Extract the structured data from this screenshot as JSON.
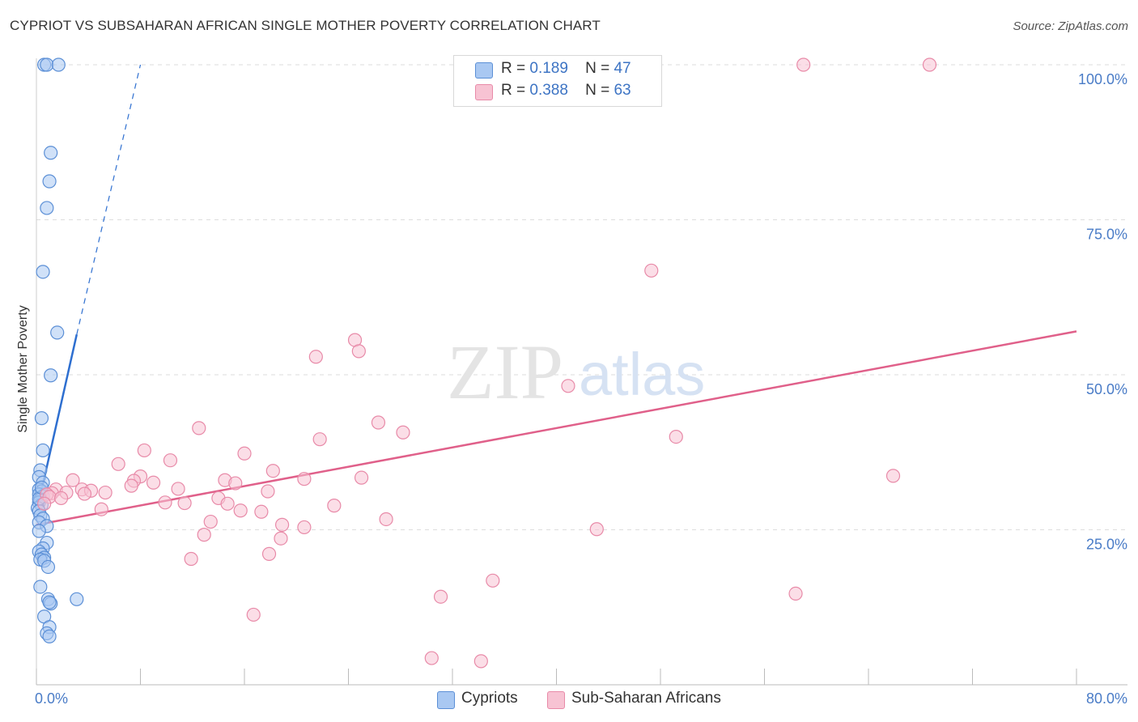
{
  "header": {
    "title": "CYPRIOT VS SUBSAHARAN AFRICAN SINGLE MOTHER POVERTY CORRELATION CHART",
    "source": "Source: ZipAtlas.com"
  },
  "watermark": {
    "zip": "ZIP",
    "atlas": "atlas"
  },
  "legend": {
    "rows": [
      {
        "r_label": "R =",
        "r_value": "0.189",
        "n_label": "N =",
        "n_value": "47"
      },
      {
        "r_label": "R =",
        "r_value": "0.388",
        "n_label": "N =",
        "n_value": "63"
      }
    ]
  },
  "bottom_legend": {
    "series1": "Cypriots",
    "series2": "Sub-Saharan Africans"
  },
  "colors": {
    "blue_fill": "#a9c8f2",
    "blue_stroke": "#5b8fd6",
    "blue_line": "#2e6fd0",
    "pink_fill": "#f7c3d3",
    "pink_stroke": "#e88aa8",
    "pink_line": "#e0608a",
    "tick_color": "#4a7cc7",
    "grid": "#dddddd"
  },
  "chart_data": {
    "type": "scatter",
    "title": "CYPRIOT VS SUBSAHARAN AFRICAN SINGLE MOTHER POVERTY CORRELATION CHART",
    "xlabel": "",
    "ylabel": "Single Mother Poverty",
    "xlim": [
      0,
      80
    ],
    "ylim": [
      0,
      100
    ],
    "x_tick_labels": [
      "0.0%",
      "80.0%"
    ],
    "y_tick_labels": [
      "100.0%",
      "75.0%",
      "50.0%",
      "25.0%"
    ],
    "y_ticks": [
      100,
      75,
      50,
      25
    ],
    "grid": true,
    "legend_position": "top-center",
    "series": [
      {
        "name": "Cypriots",
        "r": 0.189,
        "n": 47,
        "points": [
          [
            0.6,
            100
          ],
          [
            0.8,
            100
          ],
          [
            1.7,
            100
          ],
          [
            1.1,
            85.8
          ],
          [
            1.0,
            81.2
          ],
          [
            0.8,
            76.9
          ],
          [
            0.5,
            66.6
          ],
          [
            1.6,
            56.8
          ],
          [
            1.1,
            49.9
          ],
          [
            0.4,
            43
          ],
          [
            0.5,
            37.8
          ],
          [
            0.3,
            34.6
          ],
          [
            0.2,
            33.5
          ],
          [
            0.5,
            32.6
          ],
          [
            0.2,
            31.5
          ],
          [
            0.4,
            31.2
          ],
          [
            0.2,
            30.7
          ],
          [
            0.5,
            30.4
          ],
          [
            0.3,
            29.9
          ],
          [
            0.2,
            29.4
          ],
          [
            0.4,
            29
          ],
          [
            0.1,
            28.5
          ],
          [
            0.2,
            28
          ],
          [
            0.3,
            27.3
          ],
          [
            0.5,
            26.8
          ],
          [
            0.2,
            26.2
          ],
          [
            0.8,
            25.6
          ],
          [
            0.2,
            24.8
          ],
          [
            0.8,
            22.9
          ],
          [
            0.5,
            22
          ],
          [
            0.2,
            21.5
          ],
          [
            0.4,
            21
          ],
          [
            0.6,
            20.5
          ],
          [
            0.3,
            20.2
          ],
          [
            0.6,
            20
          ],
          [
            0.9,
            19
          ],
          [
            0.3,
            15.8
          ],
          [
            0.9,
            13.8
          ],
          [
            1.1,
            13.1
          ],
          [
            1.0,
            13.3
          ],
          [
            3.1,
            13.8
          ],
          [
            0.6,
            11
          ],
          [
            1.0,
            9.3
          ],
          [
            0.8,
            8.3
          ],
          [
            1.0,
            7.8
          ],
          [
            0.2,
            30
          ],
          [
            0.4,
            31.8
          ]
        ],
        "trend": [
          [
            0.3,
            30.5
          ],
          [
            3.1,
            56.5
          ]
        ],
        "trend_extension": [
          [
            3.1,
            56.5
          ],
          [
            8.0,
            100
          ]
        ]
      },
      {
        "name": "Sub-Saharan Africans",
        "r": 0.388,
        "n": 63,
        "points": [
          [
            59,
            100
          ],
          [
            68.7,
            100
          ],
          [
            47.3,
            66.8
          ],
          [
            24.5,
            55.6
          ],
          [
            24.8,
            53.8
          ],
          [
            21.5,
            52.9
          ],
          [
            40.9,
            48.2
          ],
          [
            26.3,
            42.3
          ],
          [
            12.5,
            41.4
          ],
          [
            28.2,
            40.7
          ],
          [
            49.2,
            40
          ],
          [
            21.8,
            39.6
          ],
          [
            8.3,
            37.8
          ],
          [
            16,
            37.3
          ],
          [
            10.3,
            36.2
          ],
          [
            6.3,
            35.6
          ],
          [
            18.2,
            34.5
          ],
          [
            65.9,
            33.7
          ],
          [
            8.0,
            33.6
          ],
          [
            25,
            33.4
          ],
          [
            20.6,
            33.2
          ],
          [
            2.8,
            33
          ],
          [
            14.5,
            33
          ],
          [
            7.5,
            32.9
          ],
          [
            9.0,
            32.6
          ],
          [
            15.3,
            32.5
          ],
          [
            7.3,
            32.1
          ],
          [
            10.9,
            31.6
          ],
          [
            1.5,
            31.5
          ],
          [
            3.5,
            31.5
          ],
          [
            4.2,
            31.3
          ],
          [
            17.8,
            31.2
          ],
          [
            2.3,
            31
          ],
          [
            5.3,
            31
          ],
          [
            1.2,
            30.9
          ],
          [
            3.7,
            30.8
          ],
          [
            0.8,
            30.7
          ],
          [
            1.0,
            30.3
          ],
          [
            14,
            30.1
          ],
          [
            1.9,
            30.1
          ],
          [
            9.9,
            29.4
          ],
          [
            11.4,
            29.3
          ],
          [
            0.6,
            29.2
          ],
          [
            14.7,
            29.2
          ],
          [
            22.9,
            28.9
          ],
          [
            5.0,
            28.3
          ],
          [
            15.7,
            28.1
          ],
          [
            17.3,
            27.9
          ],
          [
            26.9,
            26.7
          ],
          [
            13.4,
            26.3
          ],
          [
            18.9,
            25.8
          ],
          [
            20.6,
            25.4
          ],
          [
            43.1,
            25.1
          ],
          [
            12.9,
            24.2
          ],
          [
            18.8,
            23.6
          ],
          [
            11.9,
            20.3
          ],
          [
            17.9,
            21.1
          ],
          [
            35.1,
            16.8
          ],
          [
            58.4,
            14.7
          ],
          [
            31.1,
            14.2
          ],
          [
            16.7,
            11.3
          ],
          [
            30.4,
            4.3
          ],
          [
            34.2,
            3.8
          ]
        ],
        "trend": [
          [
            0.0,
            25.8
          ],
          [
            80.0,
            57.0
          ]
        ]
      }
    ]
  }
}
